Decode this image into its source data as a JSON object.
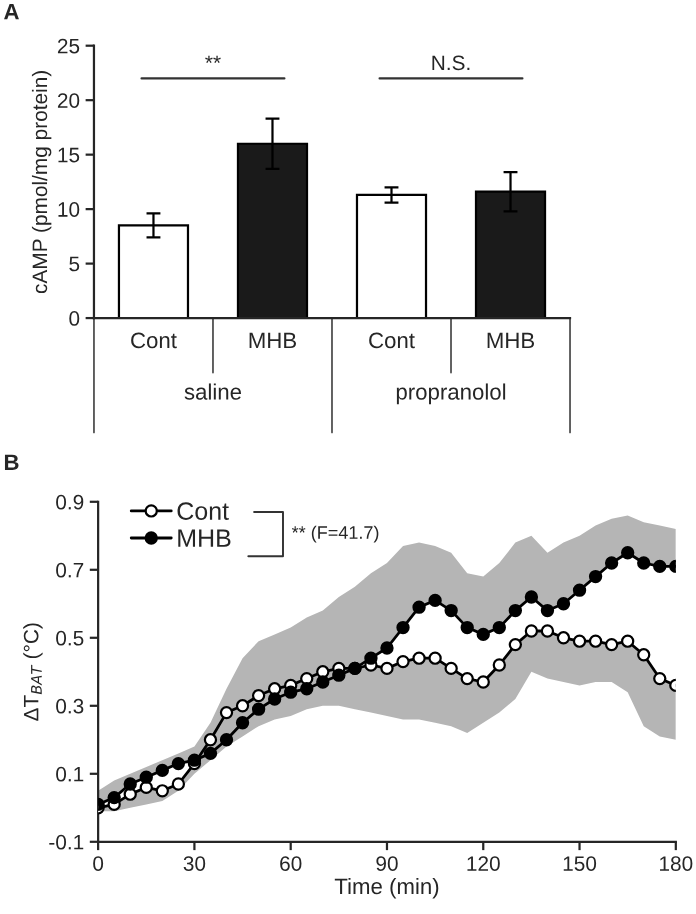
{
  "chart_data": [
    {
      "type": "bar",
      "title": "A",
      "ylabel": "cAMP (pmol/mg protein)",
      "categories": [
        "Cont",
        "MHB",
        "Cont",
        "MHB"
      ],
      "values": [
        8.5,
        16.0,
        11.3,
        11.6
      ],
      "colors": [
        "#ffffff",
        "#1a1a1a",
        "#ffffff",
        "#1a1a1a"
      ],
      "errors": [
        1.1,
        2.3,
        0.7,
        1.8
      ],
      "annotations": [
        "**",
        "N.S.",
        "saline",
        "propranolol"
      ],
      "ylim": [
        0,
        25
      ],
      "yticks": [
        0,
        5,
        10,
        15,
        20,
        25
      ],
      "grid": false
    },
    {
      "type": "line",
      "title": "B",
      "xlabel": "Time (min)",
      "ylabel": "ΔT$_{BAT}$ (°C)",
      "x": [
        0,
        5,
        10,
        15,
        20,
        25,
        30,
        35,
        40,
        45,
        50,
        55,
        60,
        65,
        70,
        75,
        80,
        85,
        90,
        95,
        100,
        105,
        110,
        115,
        120,
        125,
        130,
        135,
        140,
        145,
        150,
        155,
        160,
        165,
        170,
        175,
        180
      ],
      "series": [
        {
          "name": "Cont",
          "color": "#ffffff",
          "values": [
            0.0,
            0.01,
            0.04,
            0.06,
            0.05,
            0.07,
            0.13,
            0.2,
            0.28,
            0.3,
            0.33,
            0.35,
            0.36,
            0.38,
            0.4,
            0.41,
            0.41,
            0.42,
            0.41,
            0.43,
            0.44,
            0.44,
            0.41,
            0.38,
            0.37,
            0.42,
            0.48,
            0.52,
            0.52,
            0.5,
            0.49,
            0.49,
            0.48,
            0.49,
            0.45,
            0.38,
            0.36
          ],
          "lower": [
            -0.01,
            -0.01,
            0.0,
            0.01,
            0.02,
            0.05,
            0.1,
            0.14,
            0.18,
            0.21,
            0.24,
            0.26,
            0.27,
            0.29,
            0.3,
            0.3,
            0.29,
            0.28,
            0.27,
            0.26,
            0.26,
            0.25,
            0.24,
            0.22,
            0.25,
            0.28,
            0.32,
            0.4,
            0.38,
            0.37,
            0.36,
            0.37,
            0.37,
            0.34,
            0.24,
            0.21,
            0.2
          ],
          "upper": [
            0.0,
            0.01,
            0.04,
            0.06,
            0.05,
            0.07,
            0.13,
            0.2,
            0.28,
            0.3,
            0.33,
            0.35,
            0.36,
            0.38,
            0.4,
            0.41,
            0.41,
            0.42,
            0.41,
            0.43,
            0.44,
            0.44,
            0.41,
            0.38,
            0.37,
            0.42,
            0.48,
            0.52,
            0.52,
            0.5,
            0.49,
            0.49,
            0.48,
            0.49,
            0.45,
            0.38,
            0.36
          ]
        },
        {
          "name": "MHB",
          "color": "#000000",
          "values": [
            0.01,
            0.03,
            0.07,
            0.09,
            0.11,
            0.13,
            0.14,
            0.16,
            0.2,
            0.25,
            0.29,
            0.32,
            0.34,
            0.35,
            0.37,
            0.39,
            0.41,
            0.44,
            0.47,
            0.53,
            0.59,
            0.61,
            0.58,
            0.53,
            0.51,
            0.53,
            0.58,
            0.62,
            0.58,
            0.6,
            0.64,
            0.68,
            0.72,
            0.75,
            0.72,
            0.71,
            0.71
          ],
          "lower": [
            0.01,
            0.03,
            0.07,
            0.09,
            0.11,
            0.13,
            0.14,
            0.16,
            0.2,
            0.25,
            0.29,
            0.32,
            0.34,
            0.35,
            0.37,
            0.39,
            0.41,
            0.44,
            0.47,
            0.53,
            0.59,
            0.61,
            0.58,
            0.53,
            0.51,
            0.53,
            0.58,
            0.62,
            0.58,
            0.6,
            0.64,
            0.68,
            0.72,
            0.75,
            0.72,
            0.71,
            0.71
          ],
          "upper": [
            0.05,
            0.08,
            0.1,
            0.12,
            0.14,
            0.16,
            0.18,
            0.25,
            0.35,
            0.44,
            0.49,
            0.51,
            0.53,
            0.56,
            0.58,
            0.62,
            0.65,
            0.69,
            0.72,
            0.77,
            0.78,
            0.77,
            0.75,
            0.69,
            0.68,
            0.72,
            0.78,
            0.8,
            0.75,
            0.78,
            0.8,
            0.83,
            0.85,
            0.86,
            0.84,
            0.83,
            0.82
          ]
        }
      ],
      "annotations": [
        "** (F=41.7)"
      ],
      "xlim": [
        0,
        180
      ],
      "xticks": [
        0,
        30,
        60,
        90,
        120,
        150,
        180
      ],
      "ylim": [
        -0.1,
        0.9
      ],
      "yticks": [
        -0.1,
        0.1,
        0.3,
        0.5,
        0.7,
        0.9
      ],
      "marker": "circle",
      "line_style": "solid",
      "legend": "top left",
      "grid": false
    }
  ]
}
